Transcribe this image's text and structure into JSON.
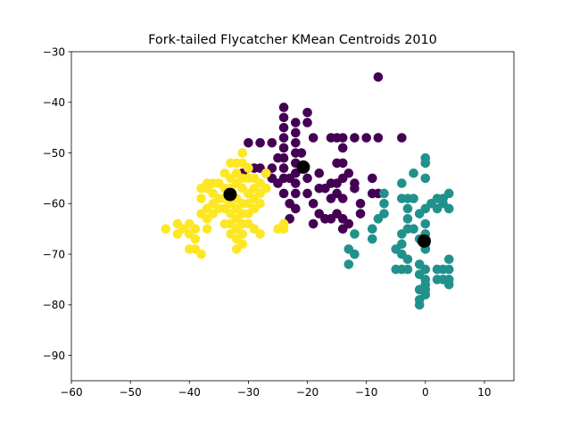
{
  "chart_data": {
    "type": "scatter",
    "title": "Fork-tailed Flycatcher KMean Centroids 2010",
    "xlabel": "",
    "ylabel": "",
    "xlim": [
      -60,
      15
    ],
    "ylim": [
      -95,
      -30
    ],
    "xticks": [
      -60,
      -50,
      -40,
      -30,
      -20,
      -10,
      0,
      10
    ],
    "yticks": [
      -90,
      -80,
      -70,
      -60,
      -50,
      -40,
      -30
    ],
    "xtick_labels": [
      "−60",
      "−50",
      "−40",
      "−30",
      "−20",
      "−10",
      "0",
      "10"
    ],
    "ytick_labels": [
      "−90",
      "−80",
      "−70",
      "−60",
      "−50",
      "−40",
      "−30"
    ],
    "grid": false,
    "series": [
      {
        "color": "#440154",
        "points": [
          [
            -8,
            -35
          ],
          [
            -4,
            -47
          ],
          [
            -8,
            -47
          ],
          [
            -10,
            -47
          ],
          [
            -12,
            -47
          ],
          [
            -14,
            -47
          ],
          [
            -15,
            -47
          ],
          [
            -16,
            -47
          ],
          [
            -20,
            -42
          ],
          [
            -20,
            -44
          ],
          [
            -19,
            -47
          ],
          [
            -22,
            -44
          ],
          [
            -22,
            -46
          ],
          [
            -22,
            -48
          ],
          [
            -22,
            -50
          ],
          [
            -22,
            -52
          ],
          [
            -22,
            -54
          ],
          [
            -22,
            -56
          ],
          [
            -22,
            -58
          ],
          [
            -22,
            -61
          ],
          [
            -23,
            -60
          ],
          [
            -23,
            -63
          ],
          [
            -24,
            -41
          ],
          [
            -24,
            -43
          ],
          [
            -24,
            -45
          ],
          [
            -24,
            -47
          ],
          [
            -24,
            -49
          ],
          [
            -24,
            -51
          ],
          [
            -24,
            -53
          ],
          [
            -24,
            -55
          ],
          [
            -24,
            -58
          ],
          [
            -23,
            -55
          ],
          [
            -21,
            -50
          ],
          [
            -20,
            -55
          ],
          [
            -20,
            -58
          ],
          [
            -18,
            -54
          ],
          [
            -18,
            -57
          ],
          [
            -19,
            -60
          ],
          [
            -17,
            -57
          ],
          [
            -17,
            -63
          ],
          [
            -16,
            -56
          ],
          [
            -16,
            -59
          ],
          [
            -15,
            -52
          ],
          [
            -15,
            -56
          ],
          [
            -15,
            -58
          ],
          [
            -15,
            -62
          ],
          [
            -14,
            -49
          ],
          [
            -14,
            -52
          ],
          [
            -14,
            -55
          ],
          [
            -14,
            -59
          ],
          [
            -14,
            -63
          ],
          [
            -13,
            -54
          ],
          [
            -13,
            -64
          ],
          [
            -12,
            -57
          ],
          [
            -11,
            -60
          ],
          [
            -11,
            -62
          ],
          [
            -9,
            -55
          ],
          [
            -9,
            -58
          ],
          [
            -26,
            -48
          ],
          [
            -26,
            -53
          ],
          [
            -26,
            -55
          ],
          [
            -25,
            -51
          ],
          [
            -25,
            -56
          ],
          [
            -28,
            -48
          ],
          [
            -28,
            -53
          ],
          [
            -29,
            -53
          ],
          [
            -30,
            -48
          ],
          [
            -30,
            -53
          ],
          [
            -31,
            -54
          ],
          [
            -27,
            -54
          ],
          [
            -19,
            -64
          ],
          [
            -18,
            -62
          ],
          [
            -16,
            -63
          ],
          [
            -14,
            -65
          ],
          [
            -12,
            -56
          ],
          [
            -8,
            -58
          ]
        ]
      },
      {
        "color": "#21918c",
        "points": [
          [
            0,
            -51
          ],
          [
            0,
            -52
          ],
          [
            0,
            -55
          ],
          [
            -2,
            -54
          ],
          [
            -4,
            -56
          ],
          [
            -7,
            -58
          ],
          [
            -8,
            -63
          ],
          [
            -9,
            -65
          ],
          [
            -12,
            -66
          ],
          [
            -13,
            -69
          ],
          [
            -12,
            -70
          ],
          [
            -13,
            -72
          ],
          [
            -4,
            -59
          ],
          [
            -3,
            -59
          ],
          [
            -2,
            -59
          ],
          [
            -3,
            -61
          ],
          [
            -3,
            -63
          ],
          [
            -3,
            -65
          ],
          [
            -2,
            -65
          ],
          [
            -4,
            -66
          ],
          [
            -4,
            -68
          ],
          [
            -5,
            -69
          ],
          [
            -4,
            -70
          ],
          [
            -3,
            -71
          ],
          [
            -3,
            -73
          ],
          [
            -4,
            -73
          ],
          [
            -5,
            -73
          ],
          [
            2,
            -59
          ],
          [
            3,
            -59
          ],
          [
            4,
            -58
          ],
          [
            3,
            -60
          ],
          [
            4,
            -61
          ],
          [
            2,
            -61
          ],
          [
            1,
            -60
          ],
          [
            0,
            -61
          ],
          [
            -1,
            -62
          ],
          [
            0,
            -64
          ],
          [
            0,
            -66
          ],
          [
            -1,
            -67
          ],
          [
            0,
            -68
          ],
          [
            0,
            -69
          ],
          [
            -1,
            -72
          ],
          [
            0,
            -73
          ],
          [
            -1,
            -74
          ],
          [
            0,
            -75
          ],
          [
            2,
            -73
          ],
          [
            3,
            -73
          ],
          [
            4,
            -71
          ],
          [
            4,
            -73
          ],
          [
            4,
            -75
          ],
          [
            4,
            -76
          ],
          [
            3,
            -75
          ],
          [
            2,
            -75
          ],
          [
            0,
            -76
          ],
          [
            0,
            -77
          ],
          [
            0,
            -78
          ],
          [
            -1,
            -77
          ],
          [
            -1,
            -79
          ],
          [
            -1,
            -80
          ],
          [
            -7,
            -60
          ],
          [
            -7,
            -62
          ],
          [
            -9,
            -67
          ]
        ]
      },
      {
        "color": "#fde725",
        "points": [
          [
            -44,
            -65
          ],
          [
            -42,
            -64
          ],
          [
            -42,
            -66
          ],
          [
            -41,
            -65
          ],
          [
            -40,
            -64
          ],
          [
            -40,
            -66
          ],
          [
            -40,
            -69
          ],
          [
            -39,
            -67
          ],
          [
            -39,
            -69
          ],
          [
            -38,
            -70
          ],
          [
            -39,
            -65
          ],
          [
            -38,
            -62
          ],
          [
            -38,
            -57
          ],
          [
            -38,
            -59
          ],
          [
            -37,
            -61
          ],
          [
            -37,
            -63
          ],
          [
            -37,
            -65
          ],
          [
            -37,
            -57
          ],
          [
            -36,
            -56
          ],
          [
            -36,
            -58
          ],
          [
            -36,
            -60
          ],
          [
            -36,
            -62
          ],
          [
            -35,
            -56
          ],
          [
            -35,
            -59
          ],
          [
            -35,
            -61
          ],
          [
            -34,
            -54
          ],
          [
            -34,
            -57
          ],
          [
            -34,
            -59
          ],
          [
            -34,
            -61
          ],
          [
            -34,
            -64
          ],
          [
            -33,
            -52
          ],
          [
            -33,
            -55
          ],
          [
            -33,
            -57
          ],
          [
            -33,
            -60
          ],
          [
            -33,
            -62
          ],
          [
            -33,
            -64
          ],
          [
            -33,
            -66
          ],
          [
            -32,
            -52
          ],
          [
            -32,
            -54
          ],
          [
            -32,
            -56
          ],
          [
            -32,
            -59
          ],
          [
            -32,
            -61
          ],
          [
            -32,
            -63
          ],
          [
            -32,
            -65
          ],
          [
            -32,
            -67
          ],
          [
            -32,
            -69
          ],
          [
            -31,
            -50
          ],
          [
            -31,
            -52
          ],
          [
            -31,
            -55
          ],
          [
            -31,
            -57
          ],
          [
            -31,
            -60
          ],
          [
            -31,
            -62
          ],
          [
            -31,
            -64
          ],
          [
            -31,
            -66
          ],
          [
            -31,
            -68
          ],
          [
            -30,
            -53
          ],
          [
            -30,
            -55
          ],
          [
            -30,
            -58
          ],
          [
            -30,
            -60
          ],
          [
            -30,
            -62
          ],
          [
            -30,
            -64
          ],
          [
            -29,
            -55
          ],
          [
            -29,
            -57
          ],
          [
            -29,
            -59
          ],
          [
            -29,
            -61
          ],
          [
            -28,
            -56
          ],
          [
            -28,
            -58
          ],
          [
            -28,
            -60
          ],
          [
            -27,
            -57
          ],
          [
            -27,
            -54
          ],
          [
            -29,
            -65
          ],
          [
            -28,
            -66
          ],
          [
            -25,
            -65
          ],
          [
            -24,
            -65
          ],
          [
            -24,
            -64
          ],
          [
            -37,
            -56
          ]
        ]
      }
    ],
    "centroids": {
      "color": "#000000",
      "points": [
        [
          -20.7,
          -52.8
        ],
        [
          -0.2,
          -67.4
        ],
        [
          -33.1,
          -58.2
        ]
      ]
    }
  }
}
